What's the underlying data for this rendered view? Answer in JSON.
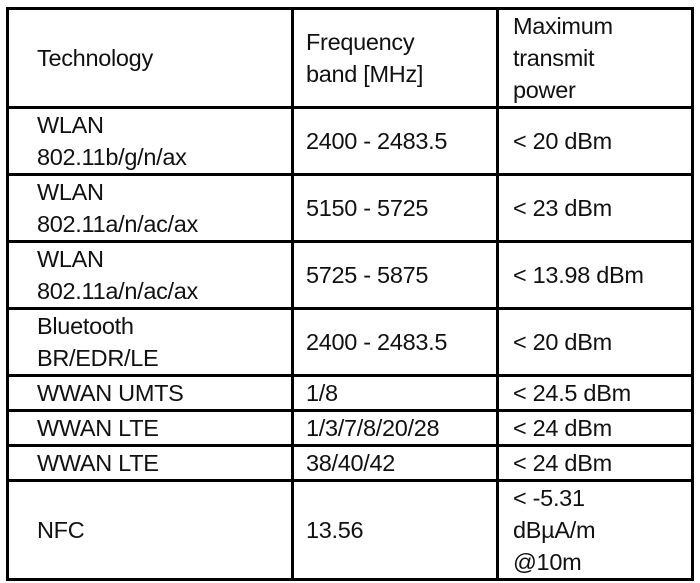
{
  "table": {
    "headers": {
      "technology": "Technology",
      "frequency": [
        "Frequency",
        "band [MHz]"
      ],
      "power": [
        "Maximum",
        "transmit",
        "power"
      ]
    },
    "rows": [
      {
        "technology": [
          "WLAN",
          "802.11b/g/n/ax"
        ],
        "frequency": "2400 - 2483.5",
        "power": [
          "< 20 dBm"
        ]
      },
      {
        "technology": [
          "WLAN",
          "802.11a/n/ac/ax"
        ],
        "frequency": "5150 - 5725",
        "power": [
          "< 23 dBm"
        ]
      },
      {
        "technology": [
          "WLAN",
          "802.11a/n/ac/ax"
        ],
        "frequency": "5725 - 5875",
        "power": [
          "< 13.98 dBm"
        ]
      },
      {
        "technology": [
          "Bluetooth",
          "BR/EDR/LE"
        ],
        "frequency": "2400 - 2483.5",
        "power": [
          "< 20 dBm"
        ]
      },
      {
        "technology": [
          "WWAN UMTS"
        ],
        "frequency": "1/8",
        "power": [
          "< 24.5 dBm"
        ]
      },
      {
        "technology": [
          "WWAN LTE"
        ],
        "frequency": "1/3/7/8/20/28",
        "power": [
          "< 24 dBm"
        ]
      },
      {
        "technology": [
          "WWAN LTE"
        ],
        "frequency": "38/40/42",
        "power": [
          "< 24 dBm"
        ]
      },
      {
        "technology": [
          "NFC"
        ],
        "frequency": "13.56",
        "power": [
          "< -5.31",
          "dBµA/m",
          "@10m"
        ]
      }
    ]
  }
}
